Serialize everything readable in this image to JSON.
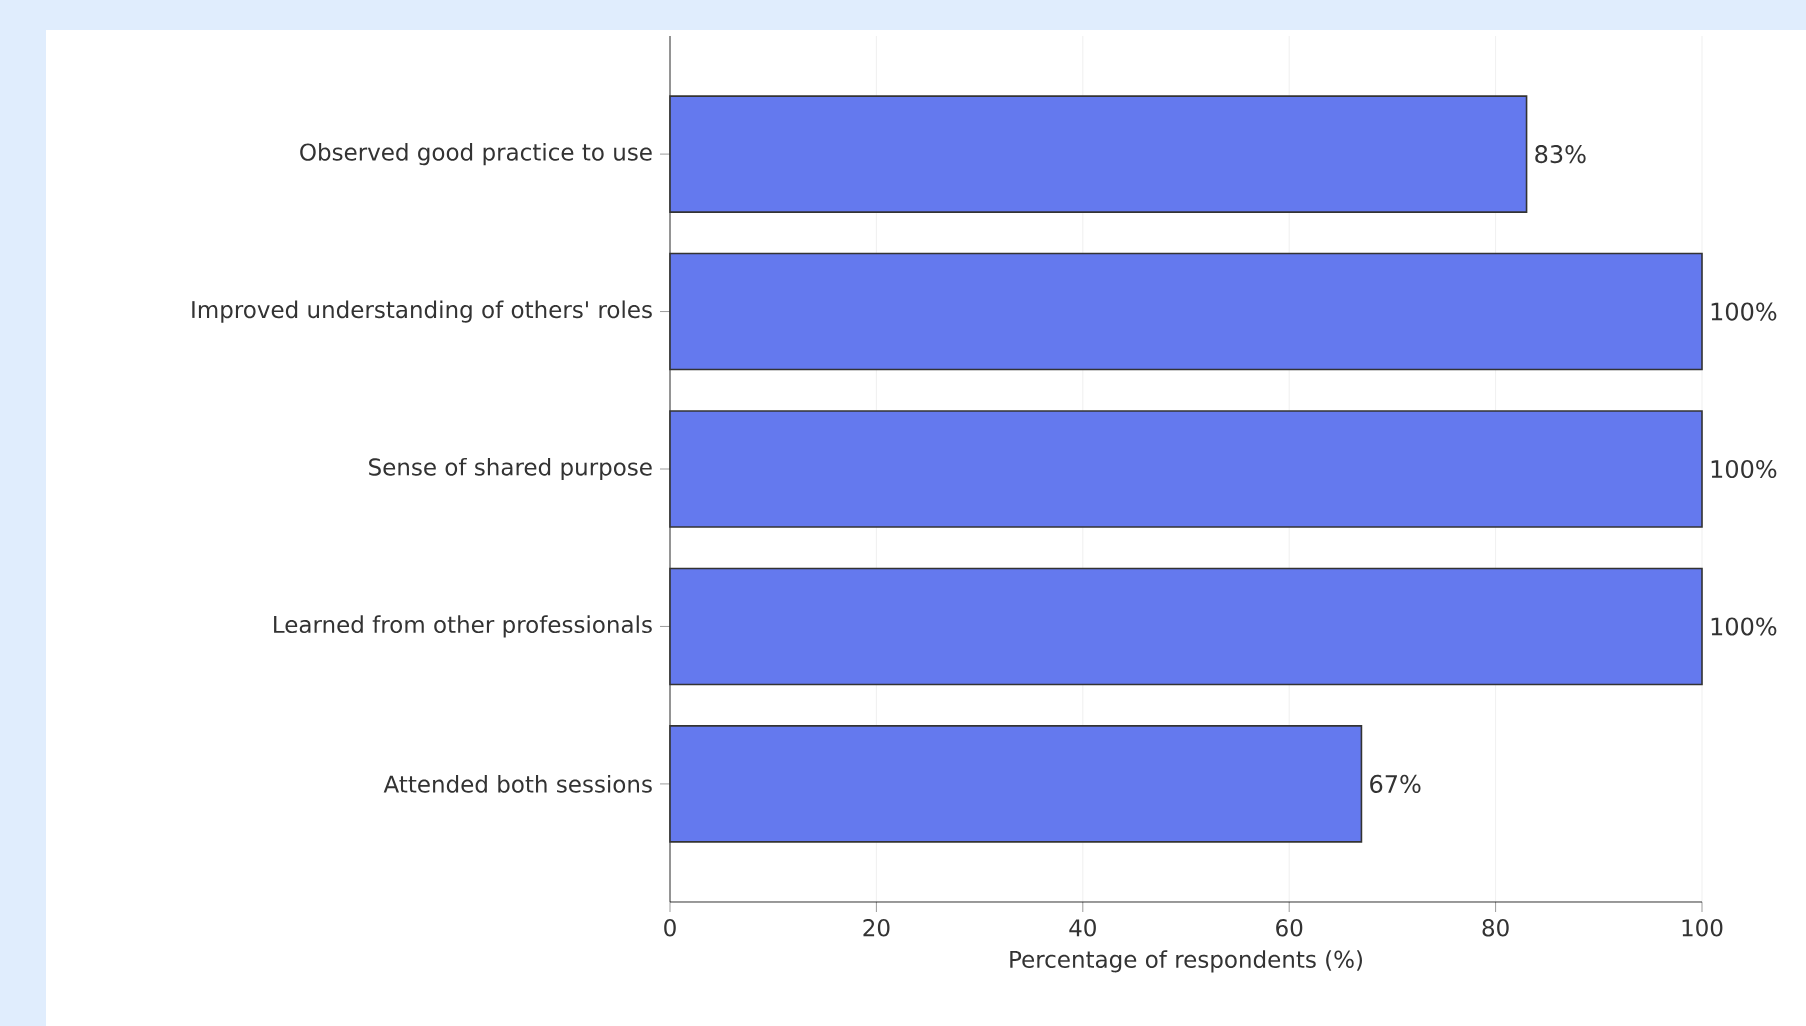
{
  "chart_data": {
    "type": "bar",
    "orientation": "horizontal",
    "xlabel": "Percentage of respondents (%)",
    "categories": [
      "Observed good practice to use",
      "Improved understanding of others' roles",
      "Sense of shared purpose",
      "Learned from other professionals",
      "Attended both sessions"
    ],
    "values": [
      83,
      100,
      100,
      100,
      67
    ],
    "value_labels": [
      "83%",
      "100%",
      "100%",
      "100%",
      "67%"
    ],
    "color": "#6479ee",
    "xlim": [
      0,
      100
    ],
    "xticks": [
      0,
      20,
      40,
      60,
      80,
      100
    ],
    "grid": "x"
  }
}
